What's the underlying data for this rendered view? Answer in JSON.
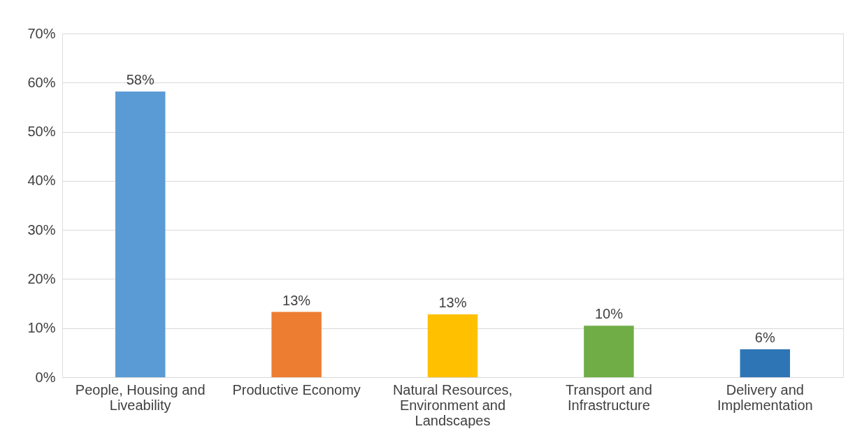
{
  "chart_data": {
    "type": "bar",
    "categories": [
      "People, Housing and Liveability",
      "Productive Economy",
      "Natural Resources, Environment and Landscapes",
      "Transport and Infrastructure",
      "Delivery and Implementation"
    ],
    "values": [
      58.2,
      13.3,
      12.8,
      10.5,
      5.7
    ],
    "value_labels": [
      "58%",
      "13%",
      "13%",
      "10%",
      "6%"
    ],
    "colors": [
      "#5b9bd5",
      "#ed7d31",
      "#ffc000",
      "#70ad47",
      "#2e75b6"
    ],
    "ylim": [
      0,
      70
    ],
    "yticks": [
      {
        "value": 0,
        "label": "0%"
      },
      {
        "value": 10,
        "label": "10%"
      },
      {
        "value": 20,
        "label": "20%"
      },
      {
        "value": 30,
        "label": "30%"
      },
      {
        "value": 40,
        "label": "40%"
      },
      {
        "value": 50,
        "label": "50%"
      },
      {
        "value": 60,
        "label": "60%"
      },
      {
        "value": 70,
        "label": "70%"
      }
    ],
    "grid": "y"
  }
}
